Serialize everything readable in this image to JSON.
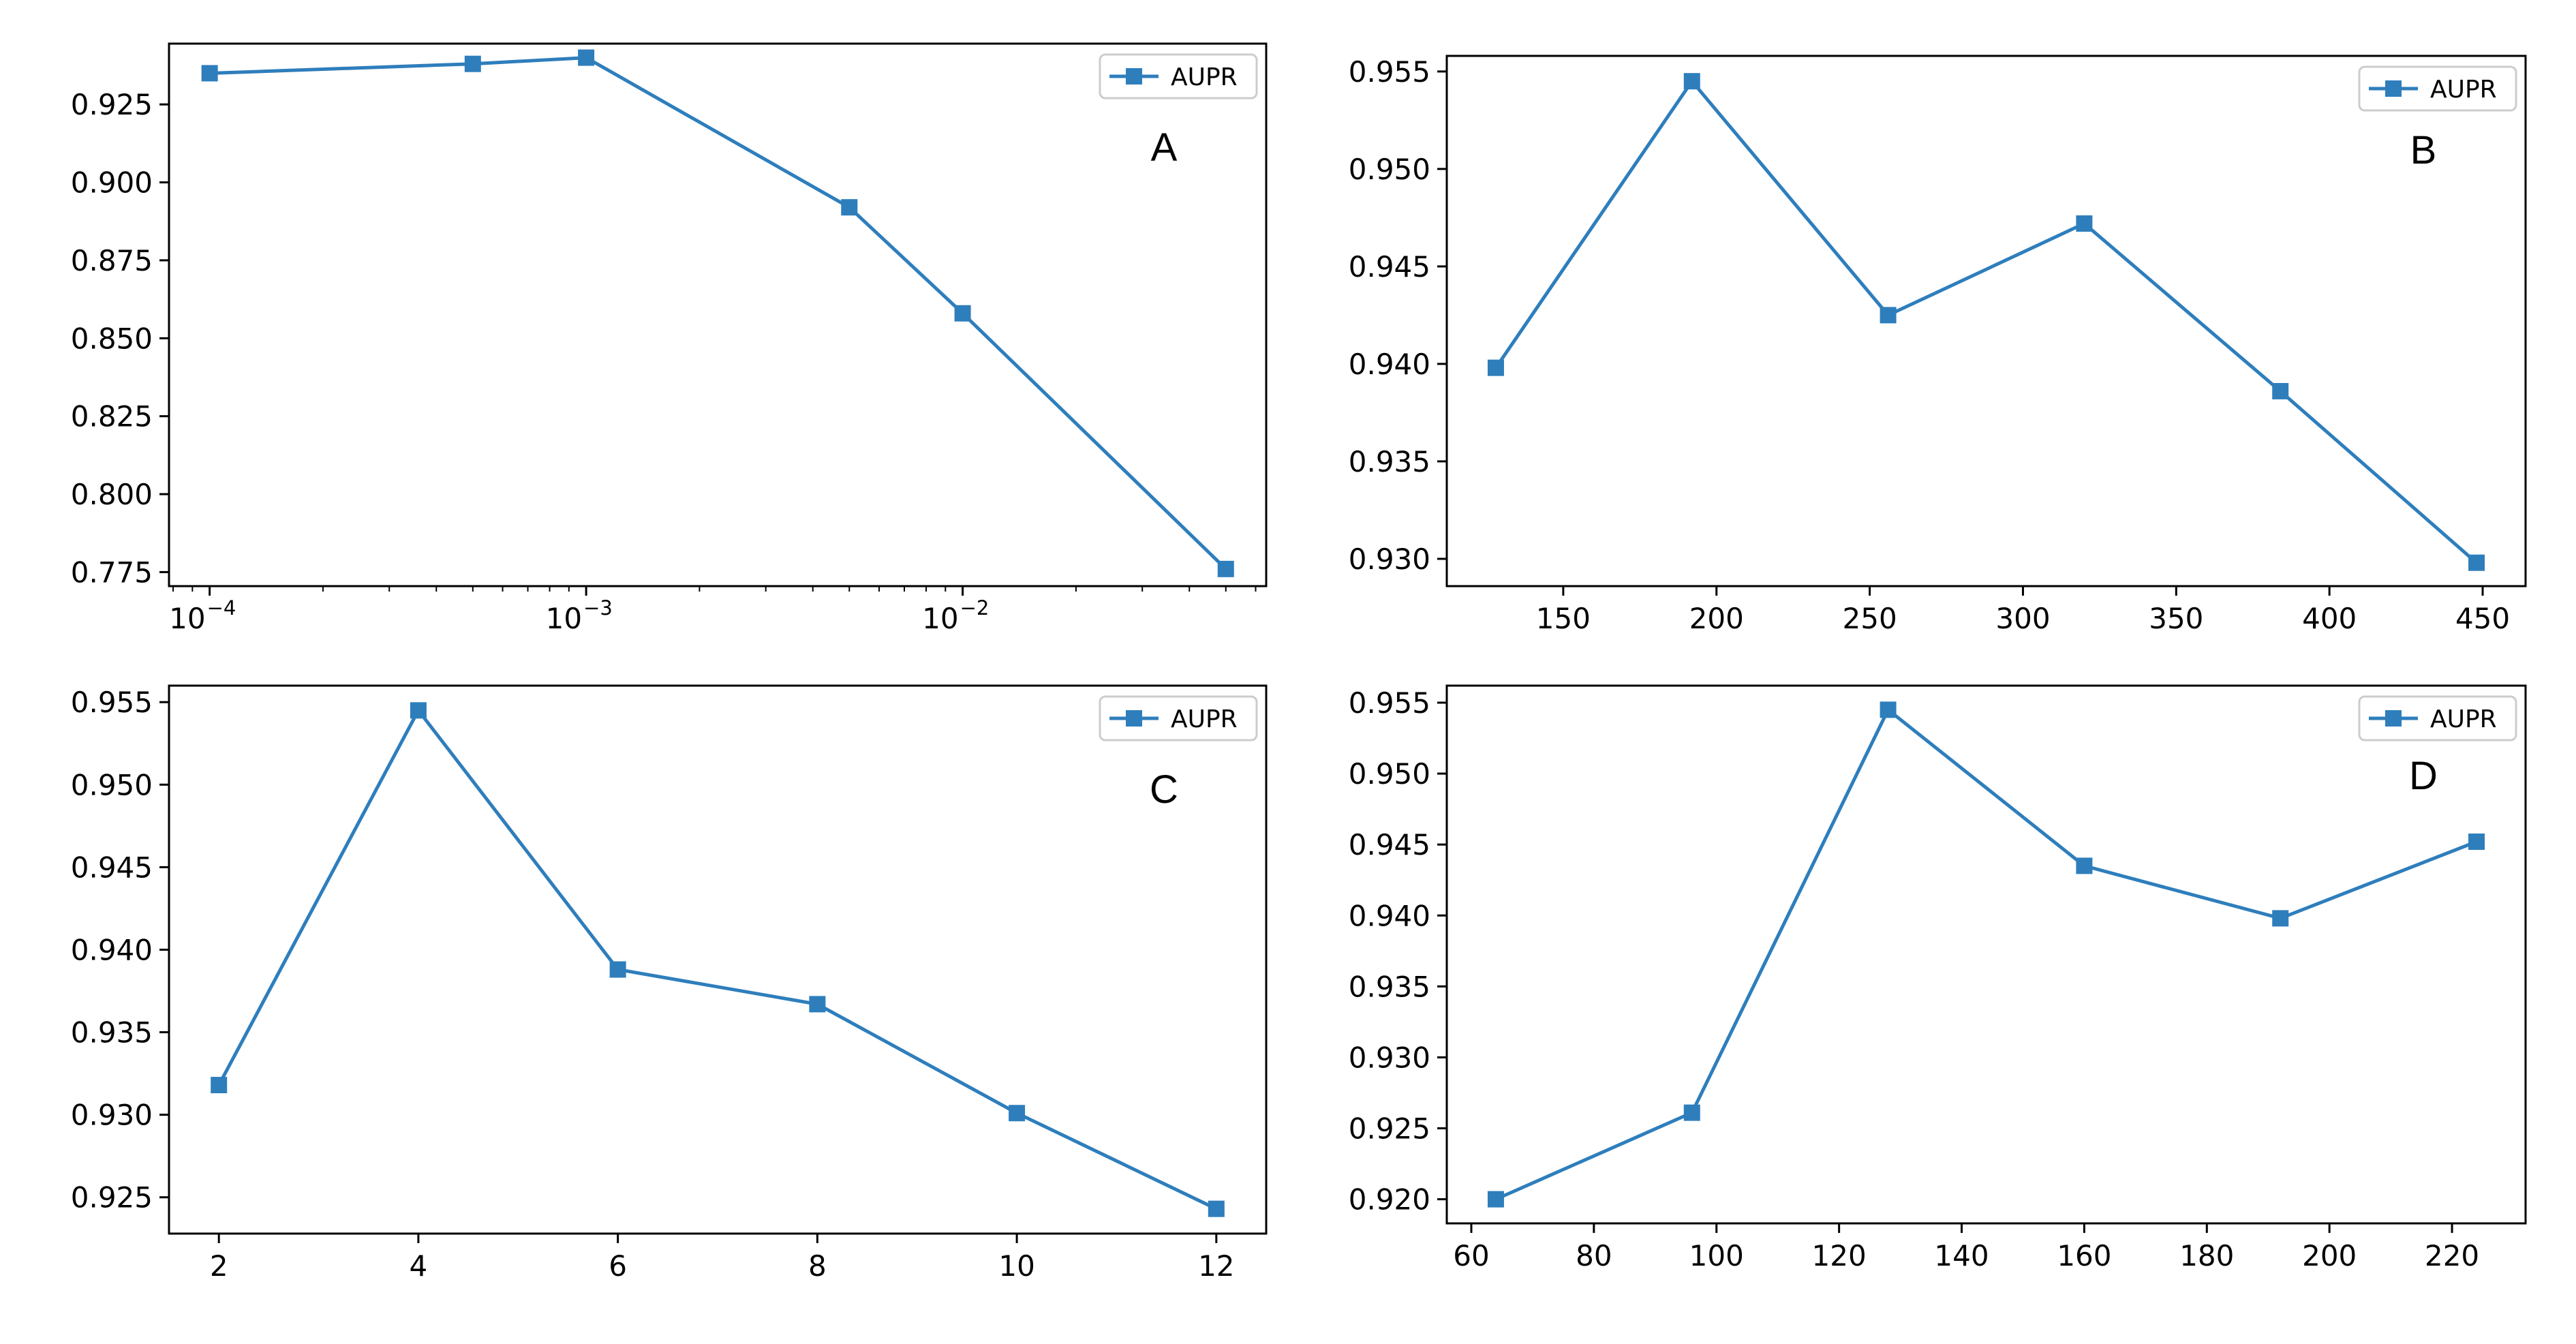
{
  "chart_data": [
    {
      "panel": "A",
      "type": "line",
      "xscale": "log",
      "x": [
        0.0001,
        0.0005,
        0.001,
        0.005,
        0.01,
        0.05
      ],
      "series": [
        {
          "name": "AUPR",
          "color": "#2e7ebc",
          "marker": "square",
          "values": [
            0.935,
            0.938,
            0.94,
            0.892,
            0.858,
            0.776
          ]
        }
      ],
      "xticks": [
        {
          "value": 0.0001,
          "base": "10",
          "exp": "−4"
        },
        {
          "value": 0.001,
          "base": "10",
          "exp": "−3"
        },
        {
          "value": 0.01,
          "base": "10",
          "exp": "−2"
        }
      ],
      "yticks": [
        0.775,
        0.8,
        0.825,
        0.85,
        0.875,
        0.9,
        0.925
      ],
      "xlim": [
        7.8e-05,
        0.064
      ],
      "ylim": [
        0.7705,
        0.9445
      ],
      "legend": "top-right",
      "grid": false
    },
    {
      "panel": "B",
      "type": "line",
      "x": [
        128,
        192,
        256,
        320,
        384,
        448
      ],
      "series": [
        {
          "name": "AUPR",
          "color": "#2e7ebc",
          "marker": "square",
          "values": [
            0.9398,
            0.9545,
            0.9425,
            0.9472,
            0.9386,
            0.9298
          ]
        }
      ],
      "xticks": [
        150,
        200,
        250,
        300,
        350,
        400,
        450
      ],
      "yticks": [
        0.93,
        0.935,
        0.94,
        0.945,
        0.95,
        0.955
      ],
      "xlim": [
        112,
        464
      ],
      "ylim": [
        0.9286,
        0.9558
      ],
      "legend": "top-right",
      "grid": false
    },
    {
      "panel": "C",
      "type": "line",
      "x": [
        2,
        4,
        6,
        8,
        10,
        12
      ],
      "series": [
        {
          "name": "AUPR",
          "color": "#2e7ebc",
          "marker": "square",
          "values": [
            0.9318,
            0.9545,
            0.9388,
            0.9367,
            0.9301,
            0.9243
          ]
        }
      ],
      "xticks": [
        2,
        4,
        6,
        8,
        10,
        12
      ],
      "yticks": [
        0.925,
        0.93,
        0.935,
        0.94,
        0.945,
        0.95,
        0.955
      ],
      "xlim": [
        1.5,
        12.5
      ],
      "ylim": [
        0.9228,
        0.956
      ],
      "legend": "top-right",
      "grid": false
    },
    {
      "panel": "D",
      "type": "line",
      "x": [
        64,
        96,
        128,
        160,
        192,
        224
      ],
      "series": [
        {
          "name": "AUPR",
          "color": "#2e7ebc",
          "marker": "square",
          "values": [
            0.92,
            0.9261,
            0.9545,
            0.9435,
            0.9398,
            0.9452
          ]
        }
      ],
      "xticks": [
        60,
        80,
        100,
        120,
        140,
        160,
        180,
        200,
        220
      ],
      "yticks": [
        0.92,
        0.925,
        0.93,
        0.935,
        0.94,
        0.945,
        0.95,
        0.955
      ],
      "xlim": [
        56,
        232
      ],
      "ylim": [
        0.9183,
        0.9562
      ],
      "legend": "top-right",
      "grid": false
    }
  ]
}
